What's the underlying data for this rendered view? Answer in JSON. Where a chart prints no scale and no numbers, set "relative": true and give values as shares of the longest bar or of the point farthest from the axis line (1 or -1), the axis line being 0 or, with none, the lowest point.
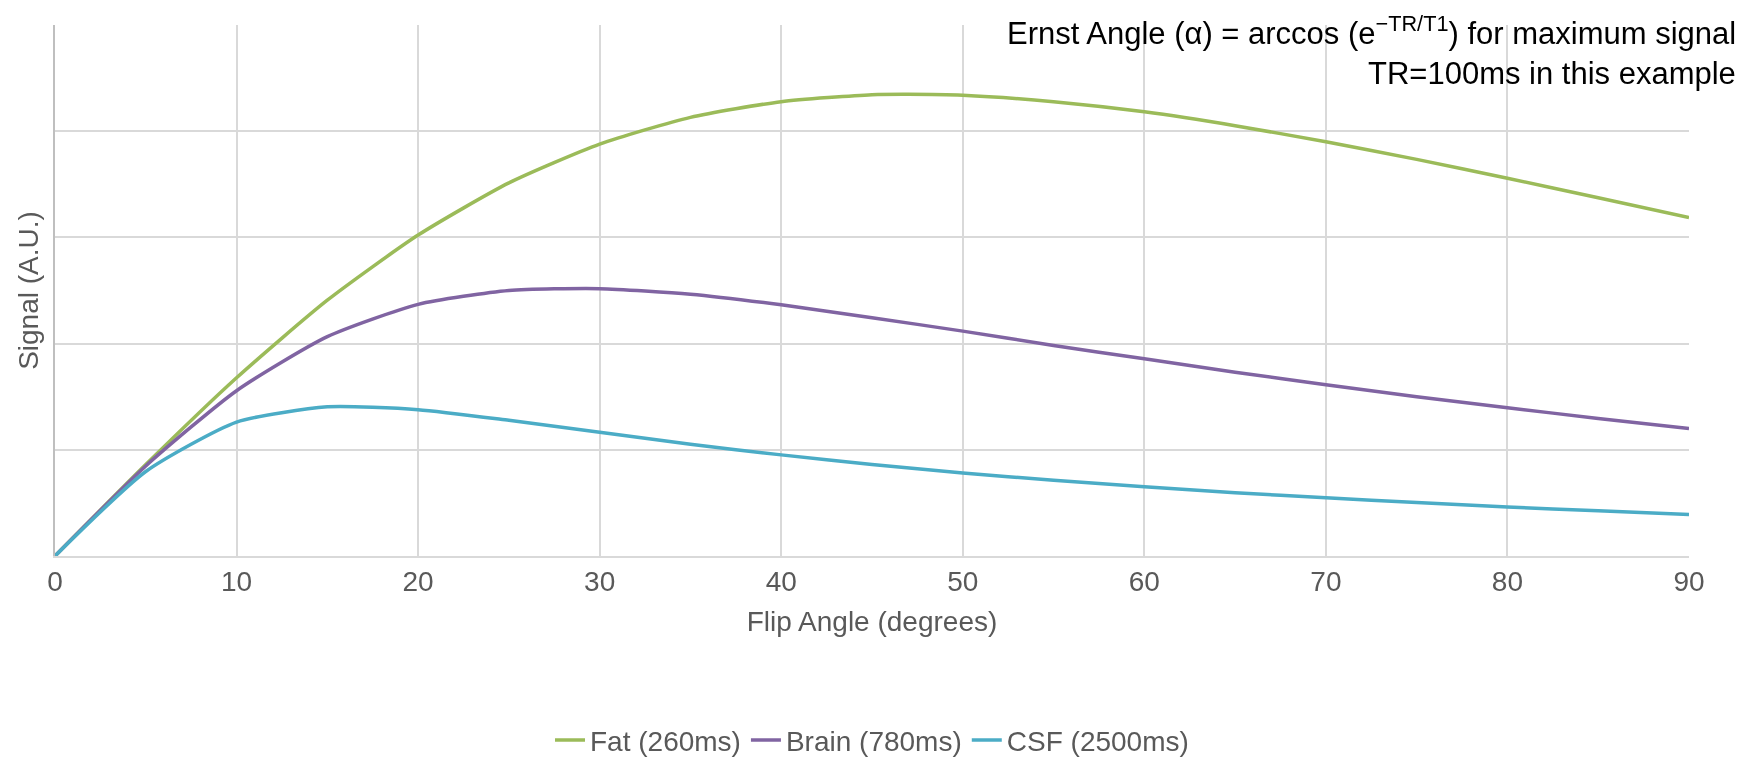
{
  "chart_data": {
    "type": "line",
    "relative": true,
    "xlabel": "Flip Angle (degrees)",
    "ylabel": "Signal (A.U.)",
    "annotations": [
      "Ernst Angle (α) = arccos (e$^{−TR/T1}$) for maximum signal",
      "TR=100ms in this example"
    ],
    "x": [
      0,
      5,
      10,
      15,
      20,
      25,
      30,
      35,
      40,
      45,
      50,
      55,
      60,
      65,
      70,
      75,
      80,
      85,
      90
    ],
    "xlim": [
      0,
      90
    ],
    "xticks": [
      0,
      10,
      20,
      30,
      40,
      50,
      60,
      70,
      80,
      90
    ],
    "grid": true,
    "legend": "bottom",
    "marker": "none",
    "line_style": "solid",
    "series": [
      {
        "name": "Fat (260ms)",
        "color": "#9bbb59",
        "x": [
          0,
          5,
          10,
          15,
          20,
          25,
          30,
          35,
          40,
          45,
          47,
          50,
          55,
          60,
          65,
          70,
          75,
          80,
          85,
          90
        ],
        "values": [
          0,
          0.198,
          0.386,
          0.554,
          0.695,
          0.808,
          0.892,
          0.95,
          0.984,
          0.999,
          1,
          0.998,
          0.984,
          0.962,
          0.932,
          0.897,
          0.859,
          0.818,
          0.776,
          0.733
        ]
      },
      {
        "name": "Brain (780ms)",
        "color": "#8064a2",
        "values": [
          0,
          0.195,
          0.358,
          0.475,
          0.545,
          0.575,
          0.579,
          0.567,
          0.544,
          0.516,
          0.487,
          0.456,
          0.427,
          0.398,
          0.371,
          0.345,
          0.321,
          0.298,
          0.276
        ]
      },
      {
        "name": "CSF (2500ms)",
        "color": "#4bacc6",
        "values": [
          0,
          0.183,
          0.29,
          0.323,
          0.317,
          0.294,
          0.268,
          0.242,
          0.219,
          0.198,
          0.18,
          0.164,
          0.15,
          0.137,
          0.126,
          0.116,
          0.106,
          0.098,
          0.09
        ]
      }
    ]
  }
}
